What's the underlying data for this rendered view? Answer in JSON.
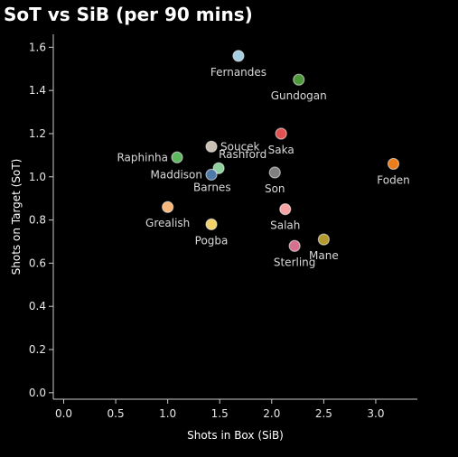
{
  "chart_data": {
    "type": "scatter",
    "title": "SoT vs SiB (per 90 mins)",
    "xlabel": "Shots in Box (SiB)",
    "ylabel": "Shots on Target (SoT)",
    "xlim": [
      -0.1,
      3.4
    ],
    "ylim": [
      -0.03,
      1.66
    ],
    "xticks": [
      "0.0",
      "0.5",
      "1.0",
      "1.5",
      "2.0",
      "2.5",
      "3.0"
    ],
    "yticks": [
      "0.0",
      "0.2",
      "0.4",
      "0.6",
      "0.8",
      "1.0",
      "1.2",
      "1.4",
      "1.6"
    ],
    "grid": false,
    "points": [
      {
        "label": "Fernandes",
        "x": 1.68,
        "y": 1.56,
        "color": "#a6cee3",
        "label_pos": "below"
      },
      {
        "label": "Gundogan",
        "x": 2.26,
        "y": 1.45,
        "color": "#4e9a3a",
        "label_pos": "below"
      },
      {
        "label": "Saka",
        "x": 2.09,
        "y": 1.2,
        "color": "#e05252",
        "label_pos": "below"
      },
      {
        "label": "Soucek",
        "x": 1.42,
        "y": 1.14,
        "color": "#c9bfb4",
        "label_pos": "right"
      },
      {
        "label": "Rashford",
        "x": 1.49,
        "y": 1.04,
        "color": "#8fd19e",
        "label_pos": "above-right"
      },
      {
        "label": "Raphinha",
        "x": 1.09,
        "y": 1.09,
        "color": "#5fb85f",
        "label_pos": "left"
      },
      {
        "label": "Son",
        "x": 2.03,
        "y": 1.02,
        "color": "#7f7f7f",
        "label_pos": "below"
      },
      {
        "label": "Maddison",
        "x": 1.42,
        "y": 1.01,
        "color": "#4f79a8",
        "label_pos": "left"
      },
      {
        "label": "Barnes",
        "x": 1.42,
        "y": 1.01,
        "color": "#4f79a8",
        "label_pos": "below-right"
      },
      {
        "label": "Foden",
        "x": 3.17,
        "y": 1.06,
        "color": "#ed7d1a",
        "label_pos": "below"
      },
      {
        "label": "Grealish",
        "x": 1.0,
        "y": 0.86,
        "color": "#f9b87a",
        "label_pos": "below"
      },
      {
        "label": "Salah",
        "x": 2.13,
        "y": 0.85,
        "color": "#f7a3a3",
        "label_pos": "below"
      },
      {
        "label": "Pogba",
        "x": 1.42,
        "y": 0.78,
        "color": "#f2d169",
        "label_pos": "below"
      },
      {
        "label": "Mane",
        "x": 2.5,
        "y": 0.71,
        "color": "#b39a2e",
        "label_pos": "below"
      },
      {
        "label": "Sterling",
        "x": 2.22,
        "y": 0.68,
        "color": "#d6708f",
        "label_pos": "below"
      }
    ]
  }
}
